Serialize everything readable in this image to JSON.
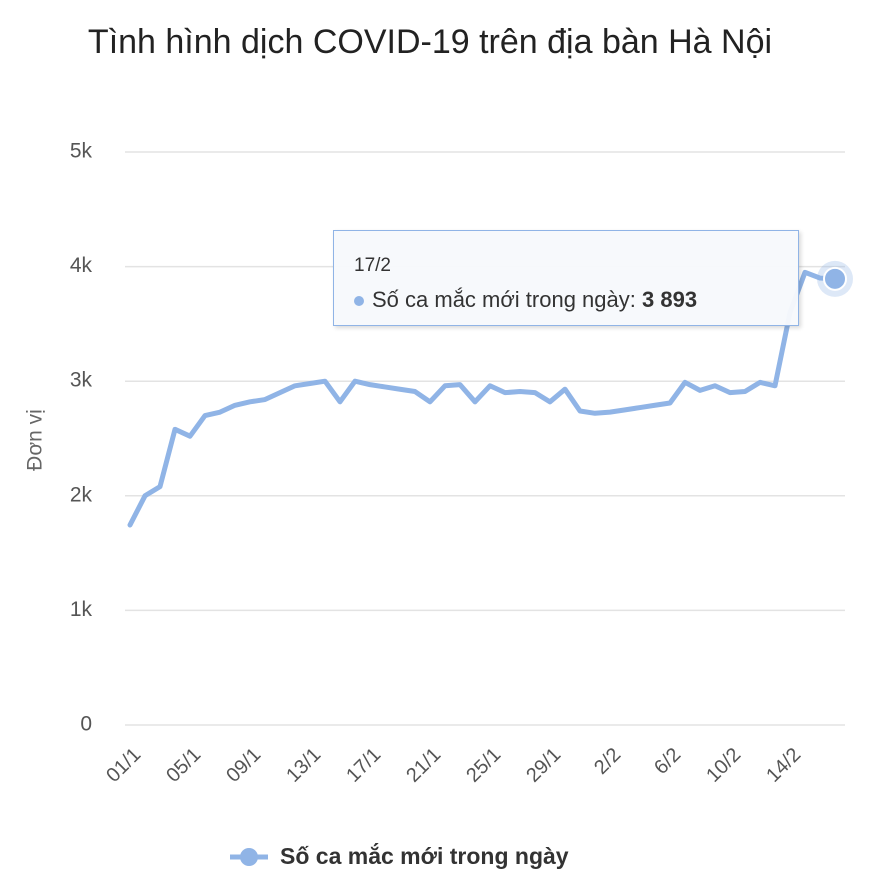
{
  "chart_data": {
    "type": "line",
    "title": "Tình hình dịch COVID-19 trên địa bàn Hà Nội",
    "y_label": "Đơn vị",
    "categories": [
      "01/1",
      null,
      null,
      null,
      "05/1",
      null,
      null,
      null,
      "09/1",
      null,
      null,
      null,
      "13/1",
      null,
      null,
      null,
      "17/1",
      null,
      null,
      null,
      "21/1",
      null,
      null,
      null,
      "25/1",
      null,
      null,
      null,
      "29/1",
      null,
      null,
      null,
      "2/2",
      null,
      null,
      null,
      "6/2",
      null,
      null,
      null,
      "10/2",
      null,
      null,
      null,
      "14/2",
      null,
      null,
      "17/2"
    ],
    "series": [
      {
        "name": "Số ca mắc mới trong ngày",
        "color": "#90b4e6",
        "values": [
          1745,
          2000,
          2080,
          2580,
          2520,
          2700,
          2730,
          2790,
          2820,
          2840,
          2900,
          2960,
          2980,
          3000,
          2820,
          3000,
          2970,
          2950,
          2930,
          2910,
          2820,
          2960,
          2970,
          2820,
          2960,
          2900,
          2910,
          2900,
          2820,
          2930,
          2740,
          2720,
          2730,
          2750,
          2770,
          2790,
          2810,
          2990,
          2920,
          2960,
          2900,
          2910,
          2990,
          2960,
          3600,
          3950,
          3900,
          3893
        ],
        "value_labels": [
          null,
          null,
          null,
          null,
          null,
          null,
          null,
          null,
          null,
          null,
          null,
          null,
          null,
          null,
          null,
          null,
          null,
          null,
          null,
          null,
          null,
          null,
          null,
          null,
          null,
          null,
          null,
          null,
          null,
          null,
          null,
          null,
          null,
          null,
          null,
          null,
          null,
          null,
          null,
          null,
          null,
          null,
          null,
          null,
          null,
          null,
          null,
          "3 893"
        ]
      }
    ],
    "ylim": [
      0,
      5000
    ],
    "yticks": [
      0,
      {
        "value": 1000,
        "label": "1k"
      },
      {
        "value": 2000,
        "label": "2k"
      },
      {
        "value": 3000,
        "label": "3k"
      },
      {
        "value": 4000,
        "label": "4k"
      },
      {
        "value": 5000,
        "label": "5k"
      }
    ],
    "grid": true,
    "legend": "bottom"
  }
}
